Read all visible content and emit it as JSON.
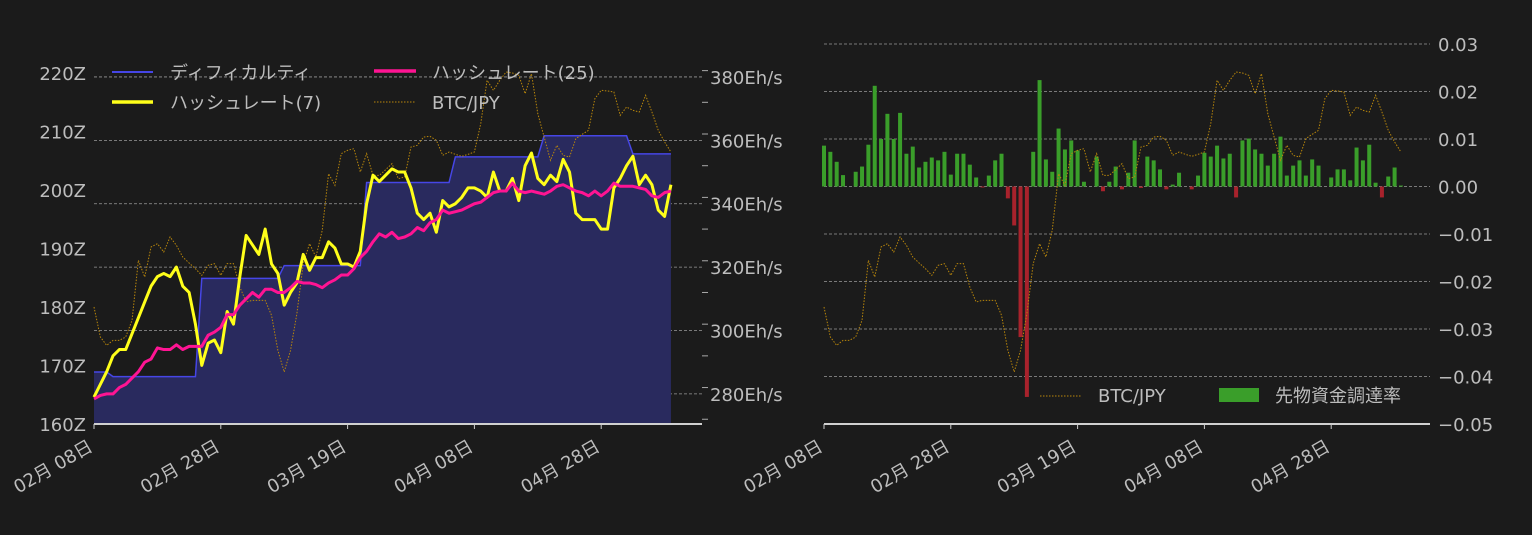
{
  "chart_data": [
    {
      "type": "line",
      "dates": [
        "02-08",
        "02-09",
        "02-10",
        "02-11",
        "02-12",
        "02-13",
        "02-14",
        "02-15",
        "02-16",
        "02-17",
        "02-18",
        "02-19",
        "02-20",
        "02-21",
        "02-22",
        "02-23",
        "02-24",
        "02-25",
        "02-26",
        "02-27",
        "02-28",
        "02-29",
        "03-01",
        "03-02",
        "03-03",
        "03-04",
        "03-05",
        "03-06",
        "03-07",
        "03-08",
        "03-09",
        "03-10",
        "03-11",
        "03-12",
        "03-13",
        "03-14",
        "03-15",
        "03-16",
        "03-17",
        "03-18",
        "03-19",
        "03-20",
        "03-21",
        "03-22",
        "03-23",
        "03-24",
        "03-25",
        "03-26",
        "03-27",
        "03-28",
        "03-29",
        "03-30",
        "03-31",
        "04-01",
        "04-02",
        "04-03",
        "04-04",
        "04-05",
        "04-06",
        "04-07",
        "04-08",
        "04-09",
        "04-10",
        "04-11",
        "04-12",
        "04-13",
        "04-14",
        "04-15",
        "04-16",
        "04-17",
        "04-18",
        "04-19",
        "04-20",
        "04-21",
        "04-22",
        "04-23",
        "04-24",
        "04-25",
        "04-26",
        "04-27",
        "04-28",
        "04-29",
        "04-30",
        "05-01",
        "05-02",
        "05-03",
        "05-04",
        "05-05",
        "05-06",
        "05-07",
        "05-08",
        "05-09"
      ],
      "x_ticks": [
        {
          "date": "02-08",
          "label": "02月 08日"
        },
        {
          "date": "02-28",
          "label": "02月 28日"
        },
        {
          "date": "03-19",
          "label": "03月 19日"
        },
        {
          "date": "04-08",
          "label": "04月 08日"
        },
        {
          "date": "04-28",
          "label": "04月 28日"
        }
      ],
      "left_axis": {
        "unit": "Z",
        "ylim": [
          160,
          225
        ],
        "ticks": [
          160,
          170,
          180,
          190,
          200,
          210,
          220
        ],
        "tick_labels": [
          "160Z",
          "170Z",
          "180Z",
          "190Z",
          "200Z",
          "210Z",
          "220Z"
        ]
      },
      "right_axis": {
        "unit": "Eh/s",
        "ylim": [
          270.5,
          390.4
        ],
        "ticks": [
          280,
          300,
          320,
          340,
          360,
          380
        ],
        "tick_labels": [
          "280Eh/s",
          "300Eh/s",
          "320Eh/s",
          "340Eh/s",
          "360Eh/s",
          "380Eh/s"
        ]
      },
      "grid": true,
      "legend_placement": "top-left",
      "series": [
        {
          "name": "ディフィカルティ",
          "axis": "left",
          "style": "area",
          "color": "#4646e6",
          "fill": "#292a5e",
          "values": [
            168.9,
            168.9,
            168.9,
            168.1,
            168.1,
            168.1,
            168.1,
            168.1,
            168.1,
            168.1,
            168.1,
            168.1,
            168.1,
            168.1,
            168.1,
            168.1,
            168.1,
            184.9,
            184.9,
            184.9,
            184.9,
            184.9,
            184.9,
            184.9,
            184.9,
            184.9,
            184.9,
            184.9,
            184.9,
            184.9,
            187.1,
            187.1,
            187.1,
            187.1,
            187.1,
            187.1,
            187.1,
            187.1,
            187.1,
            187.1,
            187.1,
            187.1,
            187.1,
            201.3,
            201.3,
            201.3,
            201.3,
            201.3,
            201.3,
            201.3,
            201.3,
            201.3,
            201.3,
            201.3,
            201.3,
            201.3,
            201.3,
            205.7,
            205.7,
            205.7,
            205.7,
            205.7,
            205.7,
            205.7,
            205.7,
            205.7,
            205.7,
            205.7,
            205.7,
            205.7,
            205.7,
            209.3,
            209.3,
            209.3,
            209.3,
            209.3,
            209.3,
            209.3,
            209.3,
            209.3,
            209.3,
            209.3,
            209.3,
            209.3,
            209.3,
            206.2,
            206.2,
            206.2,
            206.2,
            206.2,
            206.2,
            206.2
          ]
        },
        {
          "name": "ハッシュレート(25)",
          "axis": "right",
          "style": "line",
          "color": "#ff1493",
          "values": [
            278.4,
            279.5,
            280,
            280,
            282,
            283,
            285,
            287,
            290,
            291,
            294.5,
            294,
            294,
            295.5,
            294,
            295,
            295,
            295,
            298.5,
            299.5,
            301,
            305,
            305,
            308,
            310,
            312,
            310.5,
            313,
            313,
            312,
            312,
            313.5,
            315.5,
            315,
            315,
            314.5,
            313.5,
            315,
            316,
            317.5,
            317.5,
            319.5,
            323,
            325,
            328,
            330.5,
            329.5,
            331,
            329,
            329.5,
            330.5,
            332.5,
            331.5,
            334,
            335,
            338,
            337,
            337.5,
            338,
            339,
            340,
            340.5,
            342,
            343.5,
            344,
            344,
            346.5,
            344,
            343.5,
            344,
            343.5,
            343,
            344,
            345.5,
            346,
            345,
            344,
            343.5,
            342.5,
            344,
            342.5,
            344,
            346.5,
            345.5,
            345.5,
            345.5,
            345,
            344.5,
            342.5,
            342,
            343.5,
            344
          ]
        },
        {
          "name": "ハッシュレート(7)",
          "axis": "right",
          "style": "line",
          "color": "#ffff1a",
          "values": [
            279,
            283,
            287,
            292,
            294,
            294,
            299,
            304,
            309,
            314,
            317,
            318,
            317,
            320,
            314,
            312,
            302,
            289,
            296,
            297,
            293,
            306,
            302,
            317,
            330,
            327,
            324,
            332,
            321,
            318,
            308,
            312,
            315,
            324,
            319,
            323,
            323,
            328,
            326,
            321,
            321,
            320,
            325,
            340,
            349,
            347,
            349,
            351,
            350,
            350,
            345,
            337,
            335,
            337,
            331,
            341,
            339,
            340,
            342,
            345,
            345,
            344,
            342,
            350,
            344,
            344,
            348,
            341,
            352,
            356,
            348,
            346,
            349,
            347,
            354,
            350,
            337,
            335,
            335,
            335,
            332,
            332,
            345,
            348,
            352,
            355,
            346,
            349,
            346,
            338,
            336,
            346
          ]
        },
        {
          "name": "BTC/JPY",
          "axis": "hidden",
          "style": "dotted",
          "color": "#b8860b",
          "values": [
            27,
            18,
            15.5,
            17,
            17,
            18,
            23,
            41,
            36,
            45,
            46,
            43.5,
            48,
            45.5,
            42,
            40.2,
            38.5,
            36.5,
            39.5,
            40,
            36.5,
            40,
            40,
            33,
            28.5,
            29,
            29,
            29,
            24.5,
            14,
            7.5,
            14,
            25,
            40,
            46,
            42,
            50,
            67,
            63.5,
            73,
            74,
            74.5,
            67.5,
            73,
            66.5,
            66.5,
            68.2,
            70,
            65.5,
            66,
            75,
            75.5,
            78,
            78.2,
            77,
            72.5,
            73.5,
            72.8,
            72.2,
            72.8,
            73.5,
            82,
            95,
            92,
            95,
            97.5,
            97.2,
            96.5,
            91,
            97,
            85,
            78,
            71,
            75.5,
            72.5,
            72,
            77.5,
            78.8,
            80,
            89.5,
            92,
            91.8,
            91.5,
            84.5,
            87,
            86,
            85.5,
            90.5,
            85.5,
            80,
            76.5,
            73.5
          ]
        }
      ]
    },
    {
      "type": "bar",
      "x_ticks": [
        {
          "date": "02-08",
          "label": "02月 08日"
        },
        {
          "date": "02-28",
          "label": "02月 28日"
        },
        {
          "date": "03-19",
          "label": "03月 19日"
        },
        {
          "date": "04-08",
          "label": "04月 08日"
        },
        {
          "date": "04-28",
          "label": "04月 28日"
        }
      ],
      "right_axis": {
        "ylim": [
          -0.05,
          0.03
        ],
        "ticks": [
          0.03,
          0.02,
          0.01,
          0.0,
          -0.01,
          -0.02,
          -0.03,
          -0.04,
          -0.05
        ],
        "tick_labels": [
          "0.03",
          "0.02",
          "0.01",
          "0.00",
          "−0.01",
          "−0.02",
          "−0.03",
          "−0.04",
          "−0.05"
        ]
      },
      "grid": true,
      "legend_placement": "bottom-right",
      "positive_color": "#3a9e2a",
      "negative_color": "#a8222c",
      "series": [
        {
          "name": "先物資金調達率",
          "style": "bar",
          "values": [
            0.0086,
            0.0073,
            0.0052,
            0.0024,
            0,
            0.0031,
            0.0042,
            0.0088,
            0.0212,
            0.01,
            0.0153,
            0.01,
            0.0155,
            0.0069,
            0.0084,
            0.004,
            0.0052,
            0.0061,
            0.0055,
            0.0073,
            0.0025,
            0.0069,
            0.0069,
            0.0046,
            0.0019,
            -0.0001,
            0.0023,
            0.0055,
            0.0069,
            -0.0025,
            -0.0082,
            -0.0317,
            -0.0443,
            0.0073,
            0.0224,
            0.0057,
            0.0031,
            0.0122,
            0.0078,
            0.0097,
            0.0076,
            0.001,
            0,
            0.0063,
            -0.001,
            0.001,
            0.0042,
            -0.0006,
            0.0029,
            0.0097,
            -0.0003,
            0.0063,
            0.0055,
            0.0036,
            -0.0006,
            0.0004,
            0.0029,
            0,
            -0.0006,
            0.0023,
            0.0071,
            0.0063,
            0.0086,
            0.0059,
            0.0069,
            -0.0023,
            0.0097,
            0.0101,
            0.0078,
            0.0069,
            0.0044,
            0.0069,
            0.0105,
            0.0023,
            0.0044,
            0.0055,
            0.0023,
            0.0057,
            0.0044,
            0,
            0.0019,
            0.0036,
            0.0036,
            0.0013,
            0.0082,
            0.0055,
            0.0088,
            0.0008,
            -0.0023,
            0.0021,
            0.004,
            0.0002
          ]
        },
        {
          "name": "BTC/JPY",
          "style": "dotted",
          "color": "#b8860b",
          "source": "same as left chart BTC/JPY"
        }
      ]
    }
  ],
  "legend_left": {
    "difficulty": "ディフィカルティ",
    "hashrate25": "ハッシュレート(25)",
    "hashrate7": "ハッシュレート(7)",
    "btc": "BTC/JPY"
  },
  "legend_right": {
    "btc": "BTC/JPY",
    "funding": "先物資金調達率"
  }
}
